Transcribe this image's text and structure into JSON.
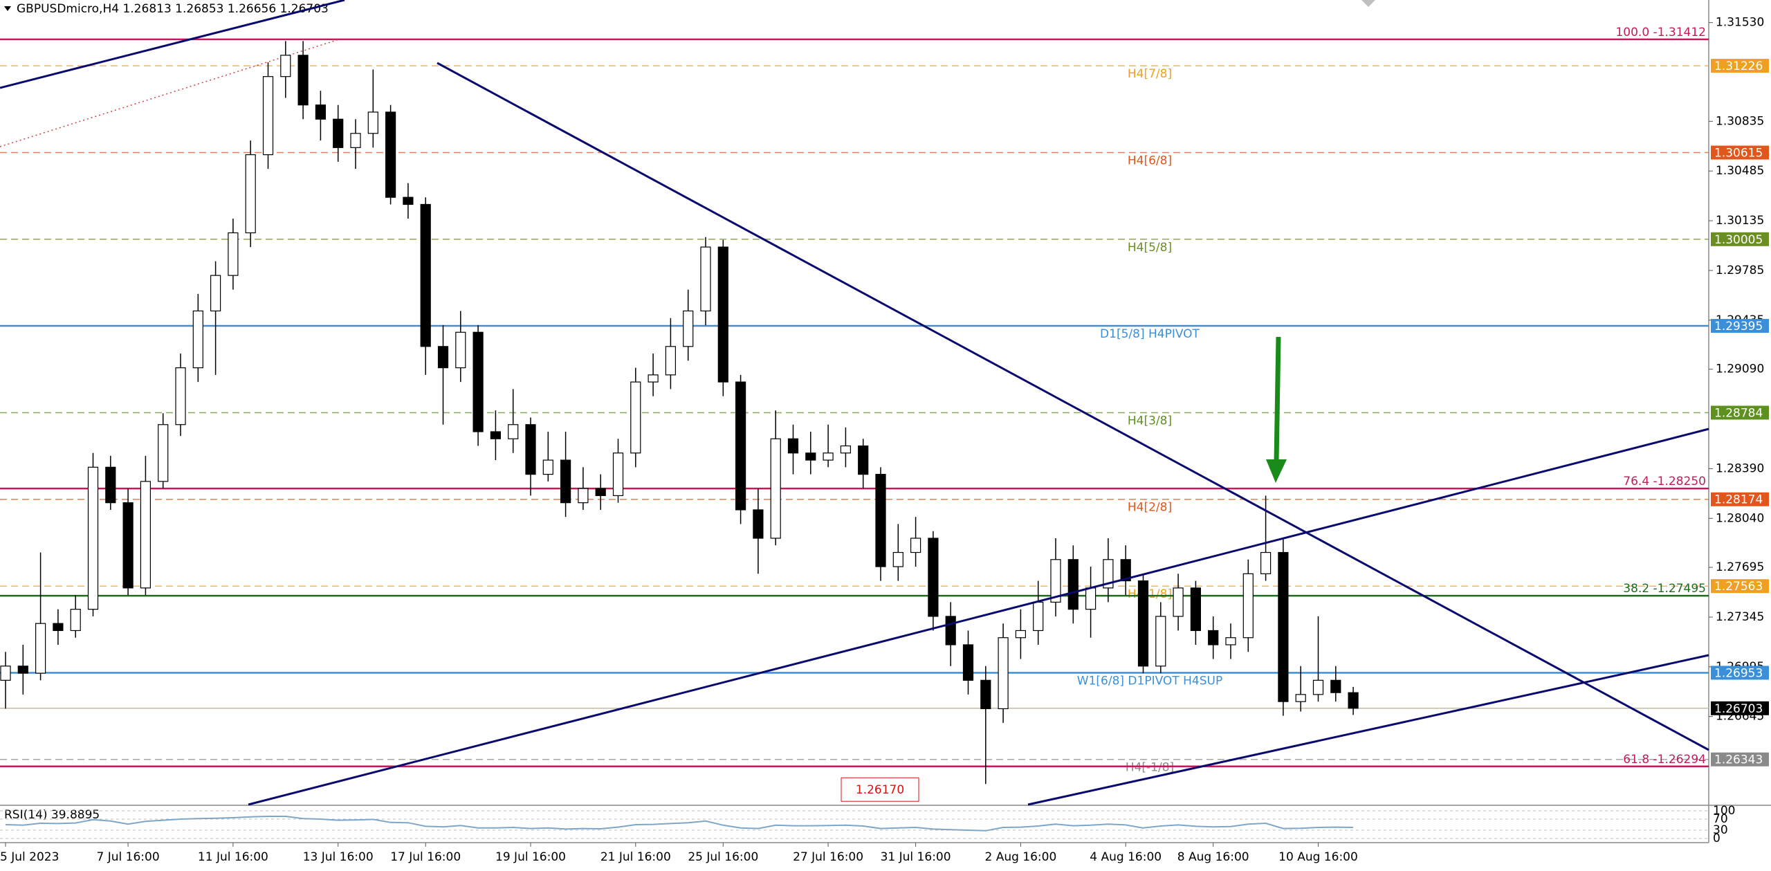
{
  "chart_data": {
    "type": "candlestick",
    "title": "GBPUSDmicro,H4  1.26813 1.26853 1.26656 1.26703",
    "categories": [
      "5 Jul 2023",
      null,
      null,
      null,
      null,
      null,
      null,
      "7 Jul 16:00",
      null,
      null,
      null,
      null,
      null,
      "11 Jul 16:00",
      null,
      null,
      null,
      null,
      null,
      "13 Jul 16:00",
      null,
      null,
      null,
      null,
      "17 Jul 16:00",
      null,
      null,
      null,
      null,
      null,
      "19 Jul 16:00",
      null,
      null,
      null,
      null,
      null,
      "21 Jul 16:00",
      null,
      null,
      null,
      null,
      "25 Jul 16:00",
      null,
      null,
      null,
      null,
      null,
      "27 Jul 16:00",
      null,
      null,
      null,
      null,
      "31 Jul 16:00",
      null,
      null,
      null,
      null,
      null,
      "2 Aug 16:00",
      null,
      null,
      null,
      null,
      null,
      "4 Aug 16:00",
      null,
      null,
      null,
      null,
      "8 Aug 16:00",
      null,
      null,
      null,
      null,
      null,
      "10 Aug 16:00",
      null,
      null
    ],
    "open": [
      1.269,
      1.27,
      1.2695,
      1.273,
      1.2725,
      1.274,
      1.284,
      1.2815,
      1.2755,
      1.283,
      1.287,
      1.291,
      1.295,
      1.2975,
      1.3005,
      1.306,
      1.3115,
      1.313,
      1.3095,
      1.3085,
      1.3065,
      1.3075,
      1.309,
      1.303,
      1.3025,
      1.2925,
      1.291,
      1.2935,
      1.2865,
      1.286,
      1.287,
      1.2835,
      1.2845,
      1.2815,
      1.2825,
      1.282,
      1.285,
      1.29,
      1.2905,
      1.2925,
      1.295,
      1.2995,
      1.29,
      1.281,
      1.279,
      1.286,
      1.285,
      1.2845,
      1.285,
      1.2855,
      1.2835,
      1.277,
      1.278,
      1.279,
      1.2735,
      1.2715,
      1.269,
      1.267,
      1.272,
      1.2725,
      1.2745,
      1.2775,
      1.274,
      1.2755,
      1.2775,
      1.276,
      1.27,
      1.2735,
      1.2755,
      1.2725,
      1.2715,
      1.272,
      1.2765,
      1.278,
      1.2675,
      1.268,
      1.269,
      1.26813
    ],
    "high": [
      1.271,
      1.2715,
      1.278,
      1.274,
      1.275,
      1.285,
      1.2848,
      1.2825,
      1.2848,
      1.2878,
      1.292,
      1.2962,
      1.2985,
      1.3015,
      1.307,
      1.3125,
      1.314,
      1.314,
      1.3105,
      1.3095,
      1.3085,
      1.312,
      1.3095,
      1.304,
      1.303,
      1.294,
      1.295,
      1.294,
      1.288,
      1.2895,
      1.2875,
      1.2865,
      1.2865,
      1.284,
      1.2835,
      1.286,
      1.291,
      1.292,
      1.2945,
      1.2965,
      1.3002,
      1.3,
      1.2905,
      1.2825,
      1.288,
      1.287,
      1.2865,
      1.287,
      1.2868,
      1.286,
      1.284,
      1.28,
      1.2805,
      1.2795,
      1.2745,
      1.2725,
      1.27,
      1.273,
      1.274,
      1.276,
      1.279,
      1.2785,
      1.277,
      1.279,
      1.2785,
      1.2765,
      1.2745,
      1.2765,
      1.276,
      1.2735,
      1.273,
      1.2775,
      1.282,
      1.279,
      1.27,
      1.2735,
      1.27,
      1.26853
    ],
    "low": [
      1.267,
      1.268,
      1.269,
      1.2715,
      1.272,
      1.2735,
      1.281,
      1.275,
      1.275,
      1.2825,
      1.2862,
      1.29,
      1.2905,
      1.2965,
      1.2995,
      1.305,
      1.31,
      1.3085,
      1.307,
      1.3055,
      1.305,
      1.3065,
      1.3025,
      1.3015,
      1.2905,
      1.287,
      1.29,
      1.2855,
      1.2845,
      1.285,
      1.282,
      1.283,
      1.2805,
      1.281,
      1.281,
      1.2815,
      1.284,
      1.289,
      1.2895,
      1.2915,
      1.294,
      1.289,
      1.28,
      1.2765,
      1.2785,
      1.2835,
      1.2835,
      1.284,
      1.284,
      1.2825,
      1.276,
      1.276,
      1.277,
      1.2725,
      1.27,
      1.268,
      1.2617,
      1.266,
      1.2705,
      1.2715,
      1.2735,
      1.273,
      1.272,
      1.2745,
      1.275,
      1.2695,
      1.2695,
      1.2725,
      1.2715,
      1.2705,
      1.2705,
      1.271,
      1.276,
      1.2665,
      1.2668,
      1.2675,
      1.2675,
      1.26656
    ],
    "close": [
      1.27,
      1.2695,
      1.273,
      1.2725,
      1.274,
      1.284,
      1.2815,
      1.2755,
      1.283,
      1.287,
      1.291,
      1.295,
      1.2975,
      1.3005,
      1.306,
      1.3115,
      1.313,
      1.3095,
      1.3085,
      1.3065,
      1.3075,
      1.309,
      1.303,
      1.3025,
      1.2925,
      1.291,
      1.2935,
      1.2865,
      1.286,
      1.287,
      1.2835,
      1.2845,
      1.2815,
      1.2825,
      1.282,
      1.285,
      1.29,
      1.2905,
      1.2925,
      1.295,
      1.2995,
      1.29,
      1.281,
      1.279,
      1.286,
      1.285,
      1.2845,
      1.285,
      1.2855,
      1.2835,
      1.277,
      1.278,
      1.279,
      1.2735,
      1.2715,
      1.269,
      1.267,
      1.272,
      1.2725,
      1.2745,
      1.2775,
      1.274,
      1.2755,
      1.2775,
      1.276,
      1.27,
      1.2735,
      1.2755,
      1.2725,
      1.2715,
      1.272,
      1.2765,
      1.278,
      1.2675,
      1.268,
      1.269,
      1.26813,
      1.26703
    ],
    "up_color": "#ffffff",
    "down_color": "#000000",
    "ylim": [
      1.26025,
      1.31689
    ],
    "yticks": [
      {
        "value": 1.3153,
        "label": "1.31530"
      },
      {
        "value": 1.30835,
        "label": "1.30835"
      },
      {
        "value": 1.30485,
        "label": "1.30485"
      },
      {
        "value": 1.30135,
        "label": "1.30135"
      },
      {
        "value": 1.29785,
        "label": "1.29785"
      },
      {
        "value": 1.29435,
        "label": "1.29435"
      },
      {
        "value": 1.2909,
        "label": "1.29090"
      },
      {
        "value": 1.2839,
        "label": "1.28390"
      },
      {
        "value": 1.2804,
        "label": "1.28040"
      },
      {
        "value": 1.27695,
        "label": "1.27695"
      },
      {
        "value": 1.27345,
        "label": "1.27345"
      },
      {
        "value": 1.26995,
        "label": "1.26995"
      },
      {
        "value": 1.26645,
        "label": "1.26645"
      }
    ],
    "levels": [
      {
        "value": 1.31412,
        "text": "100.0 -1.31412",
        "color": "#c8185a",
        "style": "solid"
      },
      {
        "value": 1.31226,
        "text": "H4[7/8]",
        "color": "#f0a020",
        "style": "dashed",
        "tag": true
      },
      {
        "value": 1.30615,
        "text": "H4[6/8]",
        "color": "#e0561c",
        "style": "dashed",
        "tag": true
      },
      {
        "value": 1.30005,
        "text": "H4[5/8]",
        "color": "#6b8e23",
        "style": "dashed",
        "tag": true
      },
      {
        "value": 1.29395,
        "text": "D1[5/8] H4PIVOT",
        "color": "#3a8fd8",
        "style": "solid",
        "tag": true
      },
      {
        "value": 1.28784,
        "text": "H4[3/8]",
        "color": "#5e9020",
        "style": "dashed",
        "tag": true
      },
      {
        "value": 1.2825,
        "text": "76.4 -1.28250",
        "color": "#c8185a",
        "style": "solid"
      },
      {
        "value": 1.28174,
        "text": "H4[2/8]",
        "color": "#e0561c",
        "style": "dashed",
        "tag": true
      },
      {
        "value": 1.27563,
        "text": "H4[1/8]",
        "color": "#f0a020",
        "style": "dashed",
        "tag": true
      },
      {
        "value": 1.27495,
        "text": "38.2 -1.27495",
        "color": "#1e6b1e",
        "style": "solid"
      },
      {
        "value": 1.26953,
        "text": "W1[6/8] D1PIVOT H4SUP",
        "color": "#3a8fd8",
        "style": "solid",
        "tag": true
      },
      {
        "value": 1.26703,
        "color": "#000000",
        "style": "solid",
        "tag": true
      },
      {
        "value": 1.26343,
        "text": "H4[-1/8]",
        "color": "#8a8a8a",
        "style": "dashed",
        "tag": true
      },
      {
        "value": 1.26294,
        "text": "61.8 -1.26294",
        "color": "#c8185a",
        "style": "solid"
      }
    ],
    "low_marker": {
      "value": 1.2617,
      "label": "1.26170",
      "color": "#e01010"
    },
    "rsi": {
      "title": "RSI(14) 39.8895",
      "color": "#7ea6c8",
      "values": [
        50,
        48,
        55,
        54,
        56,
        68,
        63,
        52,
        62,
        66,
        70,
        72,
        73,
        75,
        78,
        80,
        80,
        72,
        70,
        66,
        67,
        69,
        58,
        57,
        44,
        42,
        47,
        38,
        38,
        40,
        36,
        38,
        34,
        36,
        35,
        41,
        50,
        51,
        54,
        57,
        63,
        48,
        38,
        36,
        48,
        46,
        46,
        47,
        48,
        45,
        36,
        38,
        40,
        34,
        32,
        30,
        28,
        40,
        41,
        45,
        52,
        46,
        48,
        52,
        49,
        38,
        45,
        49,
        44,
        42,
        43,
        52,
        55,
        36,
        37,
        40,
        41,
        39.8895
      ],
      "ylim": [
        0,
        100
      ],
      "yticks": [
        100,
        70,
        30,
        0
      ]
    }
  }
}
